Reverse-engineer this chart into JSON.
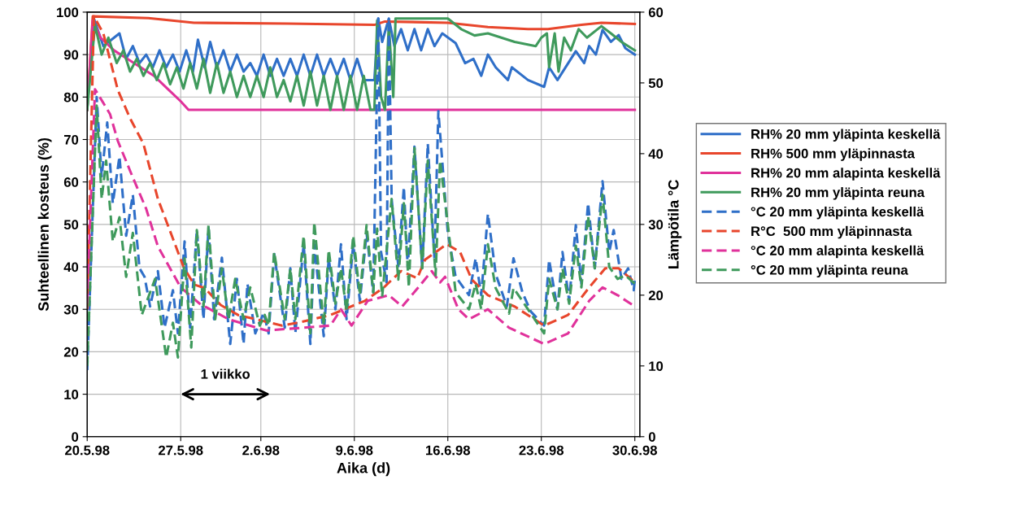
{
  "chart_data": {
    "type": "line",
    "xlabel": "Aika (d)",
    "ylabel": "Suhteellinen kosteus (%)",
    "y2label": "Lämpötila °C",
    "xlim": [
      "1998-05-20T00:00",
      "1998-06-30T09:00"
    ],
    "xticks": [
      {
        "value": "1998-05-20",
        "label": "20.5.98"
      },
      {
        "value": "1998-05-27",
        "label": "27.5.98"
      },
      {
        "value": "1998-06-02",
        "label": "2.6.98"
      },
      {
        "value": "1998-06-09",
        "label": "9.6.98"
      },
      {
        "value": "1998-06-16",
        "label": "16.6.98"
      },
      {
        "value": "1998-06-23",
        "label": "23.6.98"
      },
      {
        "value": "1998-06-30",
        "label": "30.6.98"
      }
    ],
    "ylim": [
      0,
      100
    ],
    "yticks": [
      0,
      10,
      20,
      30,
      40,
      50,
      60,
      70,
      80,
      90,
      100
    ],
    "y2lim": [
      0,
      60
    ],
    "y2ticks": [
      0,
      10,
      20,
      30,
      40,
      50,
      60
    ],
    "grid": true,
    "legend": "right",
    "marker": "none",
    "annotations": [
      "1 viikko"
    ],
    "series": [
      {
        "name": "RH% 20 mm yläpinta keskellä",
        "color": "#2f6fc8",
        "line_style": "solid",
        "x": [
          "1998-05-20T00:00",
          "1998-05-20T12:00",
          "1998-05-21T05:00",
          "1998-05-22T10:00",
          "1998-05-22T22:00",
          "1998-05-23T10:00",
          "1998-05-23T22:00",
          "1998-05-24T10:00",
          "1998-05-24T22:00",
          "1998-05-25T10:00",
          "1998-05-25T22:00",
          "1998-05-26T10:00",
          "1998-05-26T22:00",
          "1998-05-27T10:00",
          "1998-05-27T22:00",
          "1998-05-28T07:00",
          "1998-05-28T19:00",
          "1998-05-29T05:00",
          "1998-05-29T17:00",
          "1998-05-30T05:00",
          "1998-05-30T17:00",
          "1998-05-31T05:00",
          "1998-05-31T17:00",
          "1998-06-01T05:00",
          "1998-06-01T17:00",
          "1998-06-02T05:00",
          "1998-06-02T17:00",
          "1998-06-03T05:00",
          "1998-06-03T17:00",
          "1998-06-04T05:00",
          "1998-06-04T17:00",
          "1998-06-05T05:00",
          "1998-06-05T17:00",
          "1998-06-06T05:00",
          "1998-06-06T17:00",
          "1998-06-07T05:00",
          "1998-06-07T17:00",
          "1998-06-08T05:00",
          "1998-06-08T17:00",
          "1998-06-09T05:00",
          "1998-06-09T17:00",
          "1998-06-10T12:00",
          "1998-06-10T19:00",
          "1998-06-11T02:00",
          "1998-06-11T14:00",
          "1998-06-12T00:00",
          "1998-06-12T12:00",
          "1998-06-13T00:00",
          "1998-06-13T12:00",
          "1998-06-14T00:00",
          "1998-06-14T12:00",
          "1998-06-15T00:00",
          "1998-06-15T14:00",
          "1998-06-16T14:00",
          "1998-06-17T07:00",
          "1998-06-17T22:00",
          "1998-06-18T12:00",
          "1998-06-19T00:00",
          "1998-06-19T14:00",
          "1998-06-20T12:00",
          "1998-06-20T19:00",
          "1998-06-22T00:00",
          "1998-06-23T05:00",
          "1998-06-23T14:00",
          "1998-06-24T05:00",
          "1998-06-25T14:00",
          "1998-06-26T05:00",
          "1998-06-26T14:00",
          "1998-06-27T02:00",
          "1998-06-27T14:00",
          "1998-06-28T05:00",
          "1998-06-28T19:00",
          "1998-06-29T07:00",
          "1998-06-30T00:00"
        ],
        "values": [
          77,
          98.5,
          92,
          95,
          89,
          92,
          88,
          90,
          87,
          91,
          87,
          90,
          86,
          91,
          86,
          93.5,
          87,
          93,
          87,
          91,
          86,
          90,
          86,
          88,
          85,
          90,
          85,
          89,
          85,
          89,
          85,
          90,
          85,
          90,
          85,
          89,
          85,
          89,
          84,
          89,
          84,
          84,
          98.5,
          93,
          98.5,
          92,
          96,
          91,
          96,
          91,
          96,
          92,
          95,
          92.7,
          88,
          89,
          85,
          90,
          87,
          84,
          87,
          84,
          82.4,
          87,
          84,
          90.8,
          88,
          92,
          90,
          95.8,
          93,
          94.6,
          91.5,
          90
        ]
      },
      {
        "name": "RH% 500 mm yläpinnasta",
        "color": "#e8462c",
        "line_style": "solid",
        "x": [
          "1998-05-20T00:00",
          "1998-05-20T10:00",
          "1998-05-24T14:00",
          "1998-05-28T00:00",
          "1998-06-04T00:00",
          "1998-06-10T12:00",
          "1998-06-11T07:00",
          "1998-06-16T00:00",
          "1998-06-19T00:00",
          "1998-06-22T00:00",
          "1998-06-23T12:00",
          "1998-06-26T00:00",
          "1998-06-27T12:00",
          "1998-06-30T00:00"
        ],
        "values": [
          77,
          99,
          98.6,
          97.5,
          97.3,
          97,
          97.8,
          97.5,
          96.5,
          96,
          96,
          97,
          97.5,
          97.2
        ]
      },
      {
        "name": "RH% 20 mm alapinta keskellä",
        "color": "#e0329b",
        "line_style": "solid",
        "x": [
          "1998-05-20T00:00",
          "1998-05-20T10:00",
          "1998-05-21T00:00",
          "1998-05-22T00:00",
          "1998-05-23T00:00",
          "1998-05-24T00:00",
          "1998-05-25T00:00",
          "1998-05-26T00:00",
          "1998-05-27T00:00",
          "1998-05-27T14:00",
          "1998-06-30T00:00"
        ],
        "values": [
          77,
          98,
          94,
          91,
          89,
          87,
          85,
          82,
          79,
          77,
          77
        ]
      },
      {
        "name": "RH% 20 mm yläpinta reuna",
        "color": "#3f9a5c",
        "line_style": "solid",
        "x": [
          "1998-05-20T00:00",
          "1998-05-20T14:00",
          "1998-05-21T02:00",
          "1998-05-21T14:00",
          "1998-05-22T05:00",
          "1998-05-22T17:00",
          "1998-05-23T05:00",
          "1998-05-23T17:00",
          "1998-05-24T05:00",
          "1998-05-24T17:00",
          "1998-05-25T05:00",
          "1998-05-25T17:00",
          "1998-05-26T05:00",
          "1998-05-26T17:00",
          "1998-05-27T05:00",
          "1998-05-27T17:00",
          "1998-05-28T05:00",
          "1998-05-28T17:00",
          "1998-05-29T05:00",
          "1998-05-29T17:00",
          "1998-05-30T05:00",
          "1998-05-30T17:00",
          "1998-05-31T05:00",
          "1998-05-31T17:00",
          "1998-06-01T05:00",
          "1998-06-01T17:00",
          "1998-06-02T05:00",
          "1998-06-02T17:00",
          "1998-06-03T05:00",
          "1998-06-03T17:00",
          "1998-06-04T05:00",
          "1998-06-04T17:00",
          "1998-06-05T05:00",
          "1998-06-05T17:00",
          "1998-06-06T05:00",
          "1998-06-06T17:00",
          "1998-06-07T05:00",
          "1998-06-07T17:00",
          "1998-06-08T05:00",
          "1998-06-08T17:00",
          "1998-06-09T05:00",
          "1998-06-09T17:00",
          "1998-06-10T05:00",
          "1998-06-10T12:00",
          "1998-06-10T17:00",
          "1998-06-11T00:00",
          "1998-06-11T07:00",
          "1998-06-11T14:00",
          "1998-06-11T22:00",
          "1998-06-12T02:00",
          "1998-06-16T00:00",
          "1998-06-17T00:00",
          "1998-06-18T00:00",
          "1998-06-19T00:00",
          "1998-06-20T00:00",
          "1998-06-21T00:00",
          "1998-06-22T14:00",
          "1998-06-23T00:00",
          "1998-06-23T10:00",
          "1998-06-23T14:00",
          "1998-06-24T00:00",
          "1998-06-24T07:00",
          "1998-06-24T17:00",
          "1998-06-25T05:00",
          "1998-06-25T19:00",
          "1998-06-26T10:00",
          "1998-06-27T12:00",
          "1998-06-28T05:00",
          "1998-06-29T00:00",
          "1998-06-30T00:00"
        ],
        "values": [
          77,
          97,
          90,
          94,
          88,
          91,
          86,
          89,
          85,
          88,
          84,
          88,
          83,
          87,
          82,
          88,
          82,
          89,
          81,
          88,
          81,
          86,
          80,
          85,
          80,
          85,
          80,
          87,
          80,
          84,
          79,
          85,
          78,
          86,
          78,
          85,
          77,
          85,
          77,
          85,
          77,
          85,
          77,
          77,
          98,
          80,
          77,
          97,
          80,
          98.5,
          98.5,
          96,
          94.5,
          95,
          94,
          93,
          92,
          94,
          95,
          87,
          95,
          86,
          94,
          91,
          96,
          94,
          96.7,
          95,
          93,
          91
        ]
      },
      {
        "name": "°C 20 mm yläpinta keskellä",
        "color": "#2f6fc8",
        "line_style": "dashed",
        "axis": "y2",
        "x": [
          "1998-05-20T00:00",
          "1998-05-20T17:00",
          "1998-05-21T02:00",
          "1998-05-21T12:00",
          "1998-05-21T22:00",
          "1998-05-22T10:00",
          "1998-05-22T22:00",
          "1998-05-23T10:00",
          "1998-05-23T22:00",
          "1998-05-24T07:00",
          "1998-05-24T17:00",
          "1998-05-25T07:00",
          "1998-05-25T19:00",
          "1998-05-26T10:00",
          "1998-05-26T19:00",
          "1998-05-27T07:00",
          "1998-05-27T17:00",
          "1998-05-28T05:00",
          "1998-05-28T17:00",
          "1998-05-29T02:00",
          "1998-05-29T12:00",
          "1998-05-30T02:00",
          "1998-05-30T17:00",
          "1998-05-31T05:00",
          "1998-05-31T17:00",
          "1998-06-01T00:00",
          "1998-06-01T14:00",
          "1998-06-02T05:00",
          "1998-06-02T14:00",
          "1998-06-03T00:00",
          "1998-06-03T19:00",
          "1998-06-04T05:00",
          "1998-06-04T14:00",
          "1998-06-05T05:00",
          "1998-06-05T17:00",
          "1998-06-06T00:00",
          "1998-06-06T17:00",
          "1998-06-07T02:00",
          "1998-06-07T14:00",
          "1998-06-08T00:00",
          "1998-06-08T10:00",
          "1998-06-08T22:00",
          "1998-06-09T10:00",
          "1998-06-09T22:00",
          "1998-06-10T10:00",
          "1998-06-10T19:00",
          "1998-06-11T00:00",
          "1998-06-11T10:00",
          "1998-06-11T14:00",
          "1998-06-11T19:00",
          "1998-06-12T07:00",
          "1998-06-12T17:00",
          "1998-06-13T00:00",
          "1998-06-13T12:00",
          "1998-06-14T02:00",
          "1998-06-14T12:00",
          "1998-06-15T00:00",
          "1998-06-15T07:00",
          "1998-06-16T00:00",
          "1998-06-16T14:00",
          "1998-06-17T14:00",
          "1998-06-18T02:00",
          "1998-06-18T12:00",
          "1998-06-19T00:00",
          "1998-06-19T14:00",
          "1998-06-20T10:00",
          "1998-06-20T22:00",
          "1998-06-21T14:00",
          "1998-06-22T05:00",
          "1998-06-23T05:00",
          "1998-06-23T14:00",
          "1998-06-24T05:00",
          "1998-06-24T14:00",
          "1998-06-25T02:00",
          "1998-06-25T14:00",
          "1998-06-26T00:00",
          "1998-06-26T12:00",
          "1998-06-27T00:00",
          "1998-06-27T14:00",
          "1998-06-28T02:00",
          "1998-06-28T10:00",
          "1998-06-29T00:00",
          "1998-06-29T12:00",
          "1998-06-29T22:00",
          "1998-06-30T00:00"
        ],
        "values": [
          9.4,
          48,
          36.8,
          44.4,
          33,
          39.6,
          28.4,
          34.2,
          23.8,
          22.6,
          18.4,
          23.4,
          15.4,
          20.7,
          14.6,
          27.6,
          15.4,
          29.2,
          16.6,
          29.5,
          16.6,
          25.3,
          13.1,
          22.3,
          13.1,
          21.6,
          14.6,
          17.5,
          14.6,
          25.8,
          15.4,
          23.8,
          14.6,
          27.2,
          13.1,
          27.2,
          14.2,
          25.2,
          18,
          27.2,
          16.6,
          27.2,
          19.2,
          28.8,
          20.4,
          59.1,
          26.1,
          21.8,
          59.1,
          33.6,
          24.1,
          35.3,
          23.8,
          41,
          23.8,
          41.4,
          25.2,
          46,
          28.8,
          22.6,
          20,
          25.2,
          20,
          31.5,
          23,
          18.4,
          25.2,
          20.4,
          17.7,
          15.7,
          25,
          18,
          26.1,
          19.2,
          29.9,
          21.6,
          33,
          23.8,
          36.1,
          26.1,
          29.2,
          22.3,
          23.8,
          20.7,
          22.2
        ]
      },
      {
        "name": "R°C  500 mm yläpinnasta",
        "color": "#e8462c",
        "line_style": "dashed",
        "axis": "y2",
        "x": [
          "1998-05-20T00:00",
          "1998-05-20T12:00",
          "1998-05-21T05:00",
          "1998-05-22T07:00",
          "1998-05-23T05:00",
          "1998-05-24T05:00",
          "1998-05-25T07:00",
          "1998-05-26T10:00",
          "1998-05-27T05:00",
          "1998-05-28T00:00",
          "1998-05-28T19:00",
          "1998-05-30T00:00",
          "1998-05-31T07:00",
          "1998-06-03T14:00",
          "1998-06-05T00:00",
          "1998-06-07T05:00",
          "1998-06-09T19:00",
          "1998-06-11T05:00",
          "1998-06-12T12:00",
          "1998-06-13T17:00",
          "1998-06-14T07:00",
          "1998-06-15T22:00",
          "1998-06-16T22:00",
          "1998-06-17T19:00",
          "1998-06-19T00:00",
          "1998-06-21T00:00",
          "1998-06-23T05:00",
          "1998-06-25T00:00",
          "1998-06-26T14:00",
          "1998-06-27T19:00",
          "1998-06-28T19:00",
          "1998-06-30T00:00"
        ],
        "values": [
          18,
          59.4,
          57,
          49,
          45,
          41.4,
          33.6,
          28,
          24,
          21.5,
          21,
          18.6,
          17.2,
          15.7,
          16.2,
          17.2,
          19.2,
          21.1,
          23.4,
          22.4,
          25,
          27.2,
          26.1,
          22.2,
          20,
          18.4,
          15.7,
          17.2,
          21.1,
          23.8,
          23.8,
          21.8
        ]
      },
      {
        "name": "°C 20 mm alapinta keskellä",
        "color": "#e0329b",
        "line_style": "dashed",
        "axis": "y2",
        "x": [
          "1998-05-20T00:00",
          "1998-05-20T14:00",
          "1998-05-21T17:00",
          "1998-05-22T07:00",
          "1998-05-23T07:00",
          "1998-05-24T10:00",
          "1998-05-25T07:00",
          "1998-05-27T00:00",
          "1998-05-28T10:00",
          "1998-05-30T14:00",
          "1998-06-02T10:00",
          "1998-06-07T05:00",
          "1998-06-08T00:00",
          "1998-06-08T19:00",
          "1998-06-10T00:00",
          "1998-06-11T14:00",
          "1998-06-12T14:00",
          "1998-06-13T19:00",
          "1998-06-14T19:00",
          "1998-06-15T10:00",
          "1998-06-15T19:00",
          "1998-06-16T19:00",
          "1998-06-17T14:00",
          "1998-06-19T00:00",
          "1998-06-20T14:00",
          "1998-06-23T05:00",
          "1998-06-25T00:00",
          "1998-06-26T14:00",
          "1998-06-27T14:00",
          "1998-06-28T17:00",
          "1998-06-30T00:00"
        ],
        "values": [
          18.8,
          49.1,
          45.6,
          41.8,
          37.2,
          32.2,
          26.9,
          21.1,
          18.8,
          16.6,
          15,
          15.7,
          18,
          15.7,
          19.2,
          20,
          18.4,
          21.1,
          23.4,
          21.8,
          22.6,
          18,
          16.6,
          18,
          15.4,
          13.1,
          14.6,
          19.2,
          21.1,
          20,
          18.4
        ]
      },
      {
        "name": "°C 20 mm yläpinta reuna",
        "color": "#3f9a5c",
        "line_style": "dashed",
        "axis": "y2",
        "x": [
          "1998-05-20T00:00",
          "1998-05-20T17:00",
          "1998-05-21T02:00",
          "1998-05-21T10:00",
          "1998-05-21T22:00",
          "1998-05-22T10:00",
          "1998-05-22T22:00",
          "1998-05-23T10:00",
          "1998-05-24T02:00",
          "1998-05-25T02:00",
          "1998-05-25T22:00",
          "1998-05-26T10:00",
          "1998-05-26T19:00",
          "1998-05-27T07:00",
          "1998-05-27T19:00",
          "1998-05-28T05:00",
          "1998-05-28T17:00",
          "1998-05-29T02:00",
          "1998-05-29T14:00",
          "1998-05-30T02:00",
          "1998-05-30T14:00",
          "1998-05-31T02:00",
          "1998-05-31T17:00",
          "1998-06-01T05:00",
          "1998-06-01T22:00",
          "1998-06-02T07:00",
          "1998-06-02T14:00",
          "1998-06-03T00:00",
          "1998-06-03T19:00",
          "1998-06-04T05:00",
          "1998-06-04T14:00",
          "1998-06-05T05:00",
          "1998-06-05T17:00",
          "1998-06-06T00:00",
          "1998-06-06T17:00",
          "1998-06-07T02:00",
          "1998-06-07T14:00",
          "1998-06-08T00:00",
          "1998-06-08T10:00",
          "1998-06-08T22:00",
          "1998-06-09T10:00",
          "1998-06-09T22:00",
          "1998-06-10T10:00",
          "1998-06-10T17:00",
          "1998-06-11T02:00",
          "1998-06-11T19:00",
          "1998-06-12T07:00",
          "1998-06-12T17:00",
          "1998-06-13T02:00",
          "1998-06-13T12:00",
          "1998-06-14T02:00",
          "1998-06-14T12:00",
          "1998-06-15T02:00",
          "1998-06-15T10:00",
          "1998-06-16T00:00",
          "1998-06-16T14:00",
          "1998-06-17T14:00",
          "1998-06-18T02:00",
          "1998-06-18T12:00",
          "1998-06-19T00:00",
          "1998-06-19T14:00",
          "1998-06-20T14:00",
          "1998-06-20T22:00",
          "1998-06-21T19:00",
          "1998-06-23T05:00",
          "1998-06-23T14:00",
          "1998-06-24T05:00",
          "1998-06-24T14:00",
          "1998-06-25T02:00",
          "1998-06-25T14:00",
          "1998-06-26T00:00",
          "1998-06-26T12:00",
          "1998-06-27T00:00",
          "1998-06-27T14:00",
          "1998-06-28T02:00",
          "1998-06-28T17:00",
          "1998-06-29T07:00",
          "1998-06-30T00:00"
        ],
        "values": [
          10,
          46.8,
          33.6,
          39,
          27.6,
          31,
          22.6,
          28.8,
          17.2,
          22.3,
          11.2,
          16.1,
          11.2,
          25.2,
          12.6,
          29.2,
          18.4,
          29.9,
          16.6,
          23.8,
          16.6,
          22.3,
          16.6,
          21.1,
          15.7,
          17.2,
          15.7,
          26.1,
          16.6,
          23.8,
          16.6,
          28.4,
          14.6,
          30.3,
          15.7,
          26.4,
          18.8,
          23.8,
          17.7,
          28.4,
          20,
          29.9,
          20.4,
          29.4,
          19.8,
          33.6,
          22.2,
          33,
          21.1,
          40.8,
          23.8,
          39,
          22.8,
          39,
          30,
          20.4,
          18,
          21.6,
          18,
          27.2,
          21,
          17.4,
          21,
          18.6,
          14.6,
          22.3,
          18,
          23.8,
          18.8,
          27,
          21.1,
          31.2,
          23.8,
          34.2,
          24,
          22.3,
          22.8,
          21.6
        ]
      }
    ]
  }
}
